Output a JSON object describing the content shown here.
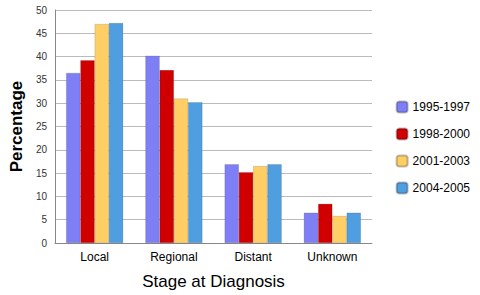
{
  "chart_data": {
    "type": "bar",
    "x_label": "Stage at Diagnosis",
    "y_label": "Percentage",
    "categories": [
      "Local",
      "Regional",
      "Distant",
      "Unknown"
    ],
    "series": [
      {
        "name": "1995-1997",
        "color": "#7f7ff5",
        "values": [
          36.5,
          40.2,
          16.9,
          6.5
        ]
      },
      {
        "name": "1998-2000",
        "color": "#d00000",
        "values": [
          39.2,
          37.1,
          15.2,
          8.4
        ]
      },
      {
        "name": "2001-2003",
        "color": "#ffcf66",
        "values": [
          47.0,
          31.0,
          16.5,
          5.8
        ]
      },
      {
        "name": "2004-2005",
        "color": "#4f9ee0",
        "values": [
          47.2,
          30.2,
          16.9,
          6.5
        ]
      }
    ],
    "ylim": [
      0,
      50
    ],
    "yticks": [
      0,
      5,
      10,
      15,
      20,
      25,
      30,
      35,
      40,
      45,
      50
    ],
    "grid": true,
    "legend": "right"
  }
}
